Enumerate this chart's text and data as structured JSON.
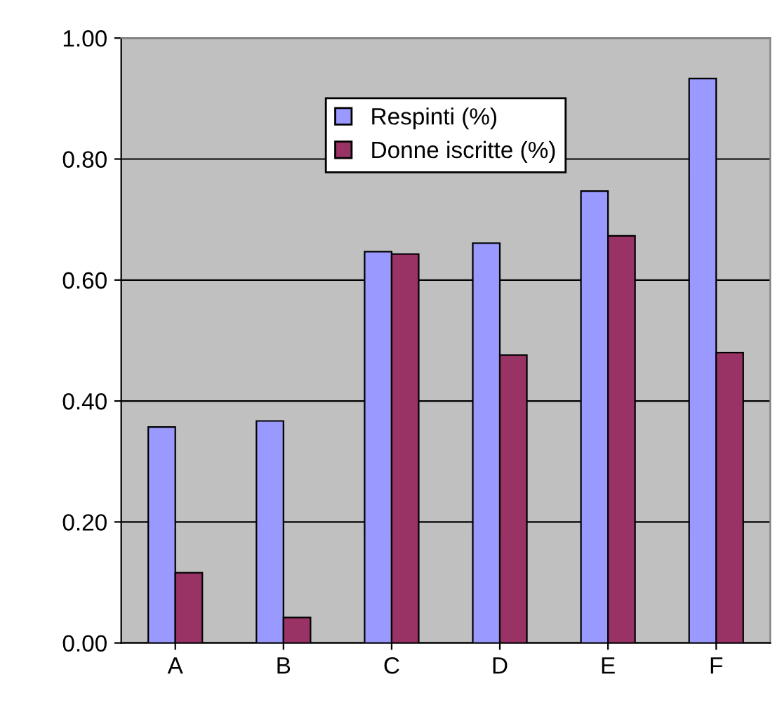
{
  "chart_data": {
    "type": "bar",
    "categories": [
      "A",
      "B",
      "C",
      "D",
      "E",
      "F"
    ],
    "series": [
      {
        "name": "Respinti (%)",
        "color": "#9999ff",
        "values": [
          0.357,
          0.367,
          0.647,
          0.661,
          0.747,
          0.933
        ]
      },
      {
        "name": "Donne iscritte (%)",
        "color": "#993366",
        "values": [
          0.116,
          0.042,
          0.643,
          0.476,
          0.673,
          0.48
        ]
      }
    ],
    "ylim": [
      0,
      1
    ],
    "yticks": [
      {
        "value": 0,
        "label": "0.00"
      },
      {
        "value": 0.2,
        "label": "0.20"
      },
      {
        "value": 0.4,
        "label": "0.40"
      },
      {
        "value": 0.6,
        "label": "0.60"
      },
      {
        "value": 0.8,
        "label": "0.80"
      },
      {
        "value": 1,
        "label": "1.00"
      }
    ],
    "grid": "y",
    "legend": "top"
  }
}
